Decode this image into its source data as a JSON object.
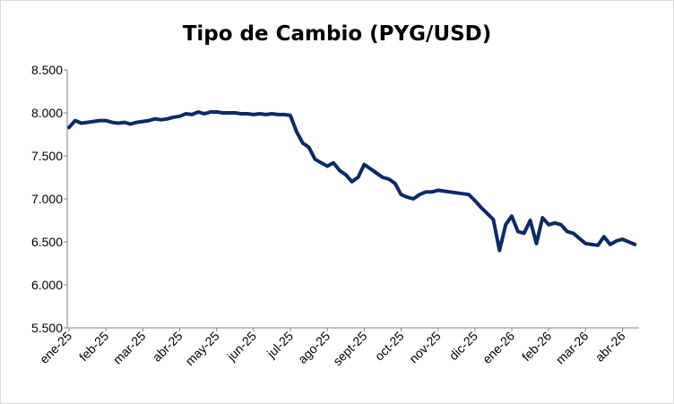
{
  "chart_data": {
    "type": "line",
    "title": "Tipo de Cambio (PYG/USD)",
    "categories": [
      "ene-25",
      null,
      null,
      null,
      null,
      null,
      "feb-25",
      null,
      null,
      null,
      null,
      null,
      "mar-25",
      null,
      null,
      null,
      null,
      null,
      "abr-25",
      null,
      null,
      null,
      null,
      null,
      "may-25",
      null,
      null,
      null,
      null,
      null,
      "jun-25",
      null,
      null,
      null,
      null,
      null,
      "jul-25",
      null,
      null,
      null,
      null,
      null,
      "ago-25",
      null,
      null,
      null,
      null,
      null,
      "sept-25",
      null,
      null,
      null,
      null,
      null,
      "oct-25",
      null,
      null,
      null,
      null,
      null,
      "nov-25",
      null,
      null,
      null,
      null,
      null,
      "dic-25",
      null,
      null,
      null,
      null,
      null,
      "ene-26",
      null,
      null,
      null,
      null,
      null,
      "feb-26",
      null,
      null,
      null,
      null,
      null,
      "mar-26",
      null,
      null,
      null,
      null,
      null,
      "abr-26",
      null,
      null
    ],
    "values": [
      7830,
      7910,
      7880,
      7890,
      7900,
      7910,
      7910,
      7890,
      7880,
      7890,
      7870,
      7890,
      7900,
      7910,
      7930,
      7920,
      7930,
      7950,
      7960,
      7990,
      7980,
      8010,
      7990,
      8010,
      8010,
      8000,
      8000,
      8000,
      7990,
      7990,
      7980,
      7990,
      7980,
      7990,
      7980,
      7980,
      7970,
      7780,
      7650,
      7600,
      7460,
      7420,
      7380,
      7420,
      7330,
      7280,
      7200,
      7250,
      7400,
      7350,
      7300,
      7250,
      7230,
      7180,
      7050,
      7020,
      7000,
      7050,
      7080,
      7080,
      7100,
      7090,
      7080,
      7070,
      7060,
      7050,
      6980,
      6900,
      6830,
      6760,
      6400,
      6700,
      6800,
      6620,
      6600,
      6750,
      6480,
      6780,
      6700,
      6720,
      6700,
      6620,
      6600,
      6540,
      6480,
      6470,
      6460,
      6560,
      6470,
      6510,
      6530,
      6500,
      6470
    ],
    "color": "#0c2a66",
    "ylim": [
      5500,
      8500
    ],
    "yticks": [
      {
        "value": 5500,
        "label": "5.500"
      },
      {
        "value": 6000,
        "label": "6.000"
      },
      {
        "value": 6500,
        "label": "6.500"
      },
      {
        "value": 7000,
        "label": "7.000"
      },
      {
        "value": 7500,
        "label": "7.500"
      },
      {
        "value": 8000,
        "label": "8.000"
      },
      {
        "value": 8500,
        "label": "8.500"
      }
    ],
    "grid": false
  }
}
